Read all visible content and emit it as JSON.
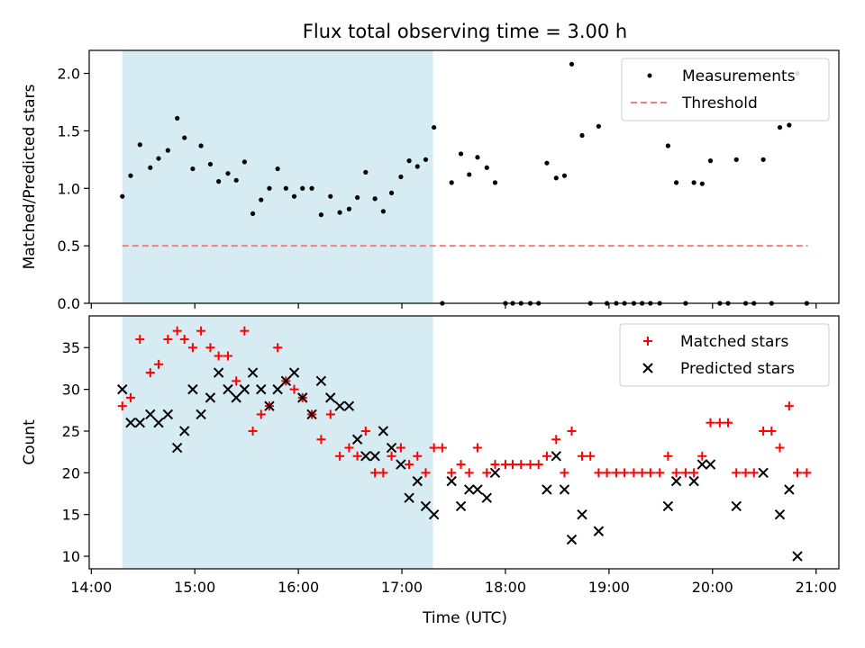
{
  "chart_data": {
    "title": "Flux total observing time = 3.00 h",
    "xlabel": "Time (UTC)",
    "x_unit": "hours UTC",
    "xlim": [
      13.98,
      21.22
    ],
    "xticks": [
      {
        "v": 14,
        "label": "14:00"
      },
      {
        "v": 15,
        "label": "15:00"
      },
      {
        "v": 16,
        "label": "16:00"
      },
      {
        "v": 17,
        "label": "17:00"
      },
      {
        "v": 18,
        "label": "18:00"
      },
      {
        "v": 19,
        "label": "19:00"
      },
      {
        "v": 20,
        "label": "20:00"
      },
      {
        "v": 21,
        "label": "21:00"
      }
    ],
    "shaded_span": {
      "x0": 14.3,
      "x1": 17.3,
      "color": "#add8e6"
    },
    "panels": [
      {
        "type": "scatter",
        "ylabel": "Matched/Predicted stars",
        "ylim": [
          0,
          2.2
        ],
        "yticks": [
          0.0,
          0.5,
          1.0,
          1.5,
          2.0
        ],
        "ytick_labels": [
          "0.0",
          "0.5",
          "1.0",
          "1.5",
          "2.0"
        ],
        "legend": {
          "position": "top-right",
          "entries": [
            {
              "label": "Measurements",
              "marker": "dot",
              "color": "#000000"
            },
            {
              "label": "Threshold",
              "marker": "dashed-line",
              "color": "#f08080"
            }
          ]
        },
        "threshold": {
          "y": 0.5,
          "x0": 14.3,
          "x1": 20.92,
          "color": "#f08080"
        },
        "series": [
          {
            "name": "Measurements",
            "color": "#000000",
            "points": [
              [
                14.3,
                0.93
              ],
              [
                14.38,
                1.11
              ],
              [
                14.47,
                1.38
              ],
              [
                14.57,
                1.18
              ],
              [
                14.65,
                1.26
              ],
              [
                14.74,
                1.33
              ],
              [
                14.83,
                1.61
              ],
              [
                14.9,
                1.44
              ],
              [
                14.98,
                1.17
              ],
              [
                15.06,
                1.37
              ],
              [
                15.15,
                1.21
              ],
              [
                15.23,
                1.06
              ],
              [
                15.32,
                1.13
              ],
              [
                15.4,
                1.07
              ],
              [
                15.48,
                1.23
              ],
              [
                15.56,
                0.78
              ],
              [
                15.64,
                0.9
              ],
              [
                15.72,
                1.0
              ],
              [
                15.8,
                1.17
              ],
              [
                15.88,
                1.0
              ],
              [
                15.96,
                0.93
              ],
              [
                16.04,
                1.0
              ],
              [
                16.13,
                1.0
              ],
              [
                16.22,
                0.77
              ],
              [
                16.31,
                0.93
              ],
              [
                16.4,
                0.79
              ],
              [
                16.49,
                0.82
              ],
              [
                16.57,
                0.92
              ],
              [
                16.65,
                1.14
              ],
              [
                16.74,
                0.91
              ],
              [
                16.82,
                0.8
              ],
              [
                16.9,
                0.96
              ],
              [
                16.99,
                1.1
              ],
              [
                17.07,
                1.24
              ],
              [
                17.15,
                1.19
              ],
              [
                17.23,
                1.25
              ],
              [
                17.31,
                1.53
              ],
              [
                17.39,
                0.0
              ],
              [
                17.48,
                1.05
              ],
              [
                17.57,
                1.3
              ],
              [
                17.65,
                1.12
              ],
              [
                17.73,
                1.27
              ],
              [
                17.82,
                1.18
              ],
              [
                17.9,
                1.05
              ],
              [
                18.0,
                0.0
              ],
              [
                18.07,
                0.0
              ],
              [
                18.15,
                0.0
              ],
              [
                18.24,
                0.0
              ],
              [
                18.32,
                0.0
              ],
              [
                18.4,
                1.22
              ],
              [
                18.49,
                1.09
              ],
              [
                18.57,
                1.11
              ],
              [
                18.64,
                2.08
              ],
              [
                18.74,
                1.46
              ],
              [
                18.82,
                0.0
              ],
              [
                18.9,
                1.54
              ],
              [
                18.98,
                0.0
              ],
              [
                19.07,
                0.0
              ],
              [
                19.15,
                0.0
              ],
              [
                19.24,
                0.0
              ],
              [
                19.32,
                0.0
              ],
              [
                19.4,
                0.0
              ],
              [
                19.49,
                0.0
              ],
              [
                19.57,
                1.37
              ],
              [
                19.65,
                1.05
              ],
              [
                19.74,
                0.0
              ],
              [
                19.82,
                1.05
              ],
              [
                19.9,
                1.04
              ],
              [
                19.98,
                1.24
              ],
              [
                20.07,
                0.0
              ],
              [
                20.15,
                0.0
              ],
              [
                20.23,
                1.25
              ],
              [
                20.32,
                0.0
              ],
              [
                20.4,
                0.0
              ],
              [
                20.49,
                1.25
              ],
              [
                20.57,
                0.0
              ],
              [
                20.65,
                1.53
              ],
              [
                20.74,
                1.55
              ],
              [
                20.82,
                2.0
              ],
              [
                20.91,
                0.0
              ]
            ]
          }
        ]
      },
      {
        "type": "scatter",
        "ylabel": "Count",
        "ylim": [
          8.5,
          38.8
        ],
        "yticks": [
          10,
          15,
          20,
          25,
          30,
          35
        ],
        "ytick_labels": [
          "10",
          "15",
          "20",
          "25",
          "30",
          "35"
        ],
        "legend": {
          "position": "top-right",
          "entries": [
            {
              "label": "Matched stars",
              "marker": "plus",
              "color": "#ff0000"
            },
            {
              "label": "Predicted stars",
              "marker": "cross",
              "color": "#000000"
            }
          ]
        },
        "series": [
          {
            "name": "Matched stars",
            "marker": "plus",
            "color": "#ff0000",
            "points": [
              [
                14.3,
                28
              ],
              [
                14.38,
                29
              ],
              [
                14.47,
                36
              ],
              [
                14.57,
                32
              ],
              [
                14.65,
                33
              ],
              [
                14.74,
                36
              ],
              [
                14.83,
                37
              ],
              [
                14.9,
                36
              ],
              [
                14.98,
                35
              ],
              [
                15.06,
                37
              ],
              [
                15.15,
                35
              ],
              [
                15.23,
                34
              ],
              [
                15.32,
                34
              ],
              [
                15.4,
                31
              ],
              [
                15.48,
                37
              ],
              [
                15.56,
                25
              ],
              [
                15.64,
                27
              ],
              [
                15.72,
                28
              ],
              [
                15.8,
                35
              ],
              [
                15.88,
                31
              ],
              [
                15.96,
                30
              ],
              [
                16.04,
                29
              ],
              [
                16.13,
                27
              ],
              [
                16.22,
                24
              ],
              [
                16.31,
                27
              ],
              [
                16.4,
                22
              ],
              [
                16.49,
                23
              ],
              [
                16.57,
                22
              ],
              [
                16.65,
                25
              ],
              [
                16.74,
                20
              ],
              [
                16.82,
                20
              ],
              [
                16.9,
                22
              ],
              [
                16.99,
                23
              ],
              [
                17.07,
                21
              ],
              [
                17.15,
                22
              ],
              [
                17.23,
                20
              ],
              [
                17.31,
                23
              ],
              [
                17.39,
                23
              ],
              [
                17.48,
                20
              ],
              [
                17.57,
                21
              ],
              [
                17.65,
                20
              ],
              [
                17.73,
                23
              ],
              [
                17.82,
                20
              ],
              [
                17.9,
                21
              ],
              [
                18.0,
                21
              ],
              [
                18.07,
                21
              ],
              [
                18.15,
                21
              ],
              [
                18.24,
                21
              ],
              [
                18.32,
                21
              ],
              [
                18.4,
                22
              ],
              [
                18.49,
                24
              ],
              [
                18.57,
                20
              ],
              [
                18.64,
                25
              ],
              [
                18.74,
                22
              ],
              [
                18.82,
                22
              ],
              [
                18.9,
                20
              ],
              [
                18.98,
                20
              ],
              [
                19.07,
                20
              ],
              [
                19.15,
                20
              ],
              [
                19.24,
                20
              ],
              [
                19.32,
                20
              ],
              [
                19.4,
                20
              ],
              [
                19.49,
                20
              ],
              [
                19.57,
                22
              ],
              [
                19.65,
                20
              ],
              [
                19.74,
                20
              ],
              [
                19.82,
                20
              ],
              [
                19.9,
                22
              ],
              [
                19.98,
                26
              ],
              [
                20.07,
                26
              ],
              [
                20.15,
                26
              ],
              [
                20.23,
                20
              ],
              [
                20.32,
                20
              ],
              [
                20.4,
                20
              ],
              [
                20.49,
                25
              ],
              [
                20.57,
                25
              ],
              [
                20.65,
                23
              ],
              [
                20.74,
                28
              ],
              [
                20.82,
                20
              ],
              [
                20.91,
                20
              ]
            ]
          },
          {
            "name": "Predicted stars",
            "marker": "cross",
            "color": "#000000",
            "points": [
              [
                14.3,
                30
              ],
              [
                14.38,
                26
              ],
              [
                14.47,
                26
              ],
              [
                14.57,
                27
              ],
              [
                14.65,
                26
              ],
              [
                14.74,
                27
              ],
              [
                14.83,
                23
              ],
              [
                14.9,
                25
              ],
              [
                14.98,
                30
              ],
              [
                15.06,
                27
              ],
              [
                15.15,
                29
              ],
              [
                15.23,
                32
              ],
              [
                15.32,
                30
              ],
              [
                15.4,
                29
              ],
              [
                15.48,
                30
              ],
              [
                15.56,
                32
              ],
              [
                15.64,
                30
              ],
              [
                15.72,
                28
              ],
              [
                15.8,
                30
              ],
              [
                15.88,
                31
              ],
              [
                15.96,
                32
              ],
              [
                16.04,
                29
              ],
              [
                16.13,
                27
              ],
              [
                16.22,
                31
              ],
              [
                16.31,
                29
              ],
              [
                16.4,
                28
              ],
              [
                16.49,
                28
              ],
              [
                16.57,
                24
              ],
              [
                16.65,
                22
              ],
              [
                16.74,
                22
              ],
              [
                16.82,
                25
              ],
              [
                16.9,
                23
              ],
              [
                16.99,
                21
              ],
              [
                17.07,
                17
              ],
              [
                17.15,
                19
              ],
              [
                17.23,
                16
              ],
              [
                17.31,
                15
              ],
              [
                17.48,
                19
              ],
              [
                17.57,
                16
              ],
              [
                17.65,
                18
              ],
              [
                17.73,
                18
              ],
              [
                17.82,
                17
              ],
              [
                17.9,
                20
              ],
              [
                18.4,
                18
              ],
              [
                18.49,
                22
              ],
              [
                18.57,
                18
              ],
              [
                18.64,
                12
              ],
              [
                18.74,
                15
              ],
              [
                18.9,
                13
              ],
              [
                19.57,
                16
              ],
              [
                19.65,
                19
              ],
              [
                19.82,
                19
              ],
              [
                19.9,
                21
              ],
              [
                19.98,
                21
              ],
              [
                20.23,
                16
              ],
              [
                20.49,
                20
              ],
              [
                20.65,
                15
              ],
              [
                20.74,
                18
              ],
              [
                20.82,
                10
              ]
            ]
          }
        ]
      }
    ]
  }
}
